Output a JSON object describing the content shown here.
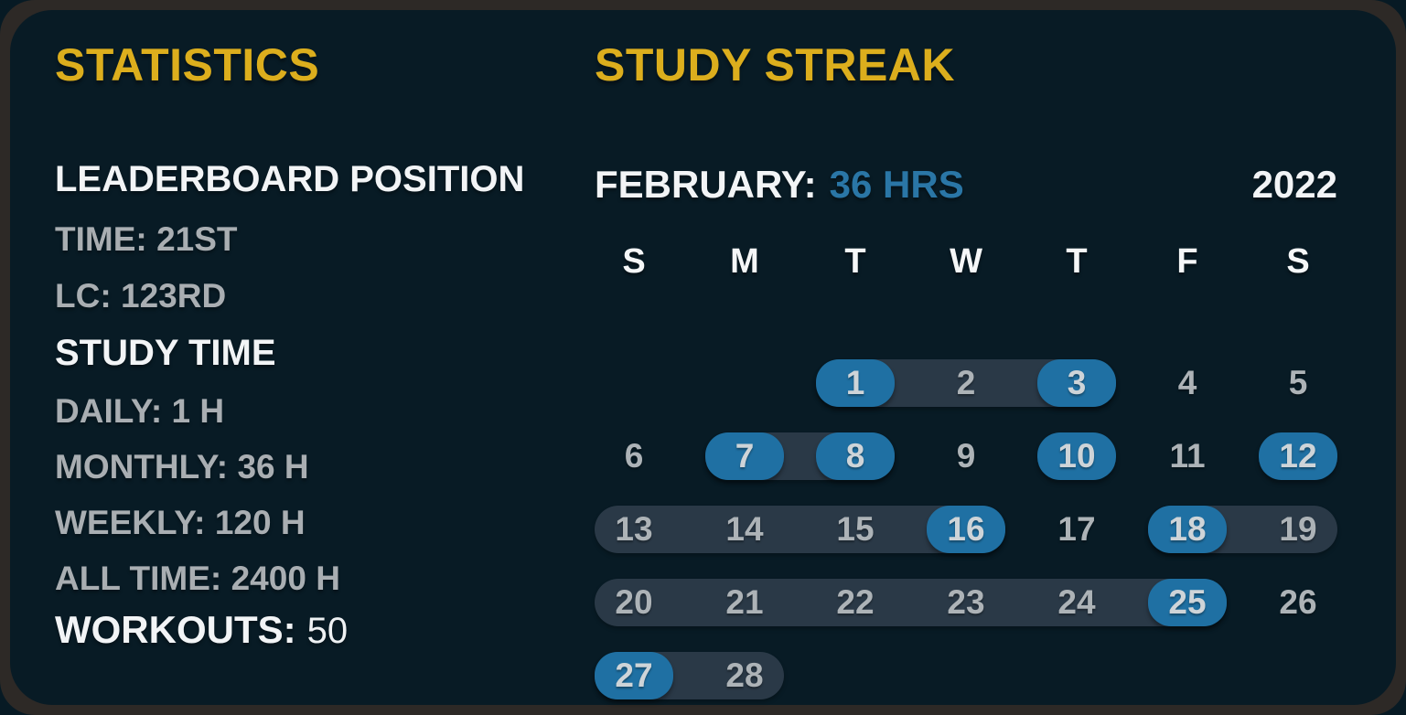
{
  "theme": {
    "background_navy": "#081b25",
    "frame_brown": "#2d2926",
    "accent_yellow": "#dcae1d",
    "highlight_blue": "#1f70a3",
    "hours_text_blue": "#2a76a6",
    "streak_band_slate": "#2a3947",
    "text_white": "#f2f4f6",
    "text_gray": "#a9aeb2"
  },
  "stats": {
    "title": "STATISTICS",
    "leaderboard": {
      "heading": "LEADERBOARD POSITION",
      "items": [
        {
          "label": "TIME:",
          "value": "21ST"
        },
        {
          "label": "LC:",
          "value": "123RD"
        }
      ]
    },
    "study_time": {
      "heading": "STUDY TIME",
      "items": [
        {
          "label": "DAILY:",
          "value": "1 H"
        },
        {
          "label": "MONTHLY:",
          "value": "36 H"
        },
        {
          "label": "WEEKLY:",
          "value": "120 H"
        },
        {
          "label": "ALL TIME:",
          "value": "2400 H"
        }
      ]
    },
    "workouts": {
      "label": "WORKOUTS:",
      "value": "50"
    }
  },
  "streak": {
    "title": "STUDY STREAK",
    "month_label": "FEBRUARY:",
    "month_total": "36 HRS",
    "year": "2022",
    "weekday_headers": [
      "S",
      "M",
      "T",
      "W",
      "T",
      "F",
      "S"
    ],
    "weeks": [
      {
        "bands": [
          [
            2,
            4
          ]
        ],
        "days": [
          {
            "d": "1",
            "col": 2,
            "hl": true
          },
          {
            "d": "2",
            "col": 3
          },
          {
            "d": "3",
            "col": 4,
            "hl": true
          },
          {
            "d": "4",
            "col": 5
          },
          {
            "d": "5",
            "col": 6
          }
        ]
      },
      {
        "bands": [
          [
            1,
            2
          ]
        ],
        "days": [
          {
            "d": "6",
            "col": 0
          },
          {
            "d": "7",
            "col": 1,
            "hl": true
          },
          {
            "d": "8",
            "col": 2,
            "hl": true
          },
          {
            "d": "9",
            "col": 3
          },
          {
            "d": "10",
            "col": 4,
            "hl": true
          },
          {
            "d": "11",
            "col": 5
          },
          {
            "d": "12",
            "col": 6,
            "hl": true
          }
        ]
      },
      {
        "bands": [
          [
            0,
            3
          ],
          [
            5,
            6
          ]
        ],
        "days": [
          {
            "d": "13",
            "col": 0
          },
          {
            "d": "14",
            "col": 1
          },
          {
            "d": "15",
            "col": 2
          },
          {
            "d": "16",
            "col": 3,
            "hl": true
          },
          {
            "d": "17",
            "col": 4
          },
          {
            "d": "18",
            "col": 5,
            "hl": true
          },
          {
            "d": "19",
            "col": 6
          }
        ]
      },
      {
        "bands": [
          [
            0,
            5
          ]
        ],
        "days": [
          {
            "d": "20",
            "col": 0
          },
          {
            "d": "21",
            "col": 1
          },
          {
            "d": "22",
            "col": 2
          },
          {
            "d": "23",
            "col": 3
          },
          {
            "d": "24",
            "col": 4
          },
          {
            "d": "25",
            "col": 5,
            "hl": true
          },
          {
            "d": "26",
            "col": 6
          }
        ]
      },
      {
        "bands": [
          [
            0,
            1
          ]
        ],
        "days": [
          {
            "d": "27",
            "col": 0,
            "hl": true
          },
          {
            "d": "28",
            "col": 1
          }
        ]
      }
    ]
  }
}
